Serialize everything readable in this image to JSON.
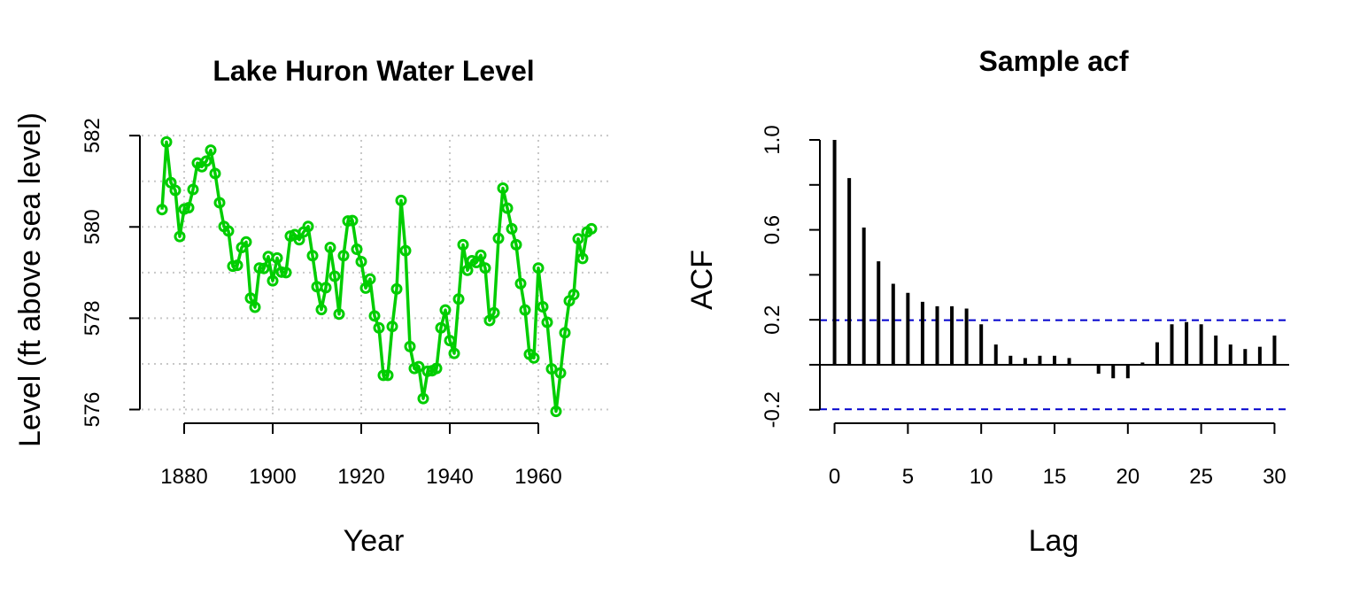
{
  "chart_data": [
    {
      "type": "line",
      "title": "Lake Huron Water Level",
      "xlabel": "Year",
      "ylabel": "Level (ft above sea level)",
      "xlim": [
        1870,
        1976
      ],
      "ylim": [
        575.7,
        582.1
      ],
      "x_ticks": [
        1880,
        1900,
        1920,
        1940,
        1960
      ],
      "y_ticks": [
        576,
        578,
        580,
        582
      ],
      "grid": true,
      "grid_style": "dotted",
      "line_color": "#00cd00",
      "markers": "open circles",
      "series": [
        {
          "x": [
            1875,
            1876,
            1877,
            1878,
            1879,
            1880,
            1881,
            1882,
            1883,
            1884,
            1885,
            1886,
            1887,
            1888,
            1889,
            1890,
            1891,
            1892,
            1893,
            1894,
            1895,
            1896,
            1897,
            1898,
            1899,
            1900,
            1901,
            1902,
            1903,
            1904,
            1905,
            1906,
            1907,
            1908,
            1909,
            1910,
            1911,
            1912,
            1913,
            1914,
            1915,
            1916,
            1917,
            1918,
            1919,
            1920,
            1921,
            1922,
            1923,
            1924,
            1925,
            1926,
            1927,
            1928,
            1929,
            1930,
            1931,
            1932,
            1933,
            1934,
            1935,
            1936,
            1937,
            1938,
            1939,
            1940,
            1941,
            1942,
            1943,
            1944,
            1945,
            1946,
            1947,
            1948,
            1949,
            1950,
            1951,
            1952,
            1953,
            1954,
            1955,
            1956,
            1957,
            1958,
            1959,
            1960,
            1961,
            1962,
            1963,
            1964,
            1965,
            1966,
            1967,
            1968,
            1969,
            1970,
            1971,
            1972
          ],
          "y": [
            580.38,
            581.86,
            580.97,
            580.8,
            579.79,
            580.39,
            580.42,
            580.82,
            581.4,
            581.32,
            581.44,
            581.68,
            581.17,
            580.53,
            580.01,
            579.91,
            579.14,
            579.16,
            579.55,
            579.67,
            578.44,
            578.24,
            579.1,
            579.09,
            579.35,
            578.82,
            579.32,
            579.01,
            579.0,
            579.8,
            579.83,
            579.72,
            579.89,
            580.01,
            579.37,
            578.69,
            578.19,
            578.67,
            579.55,
            578.92,
            578.09,
            579.37,
            580.13,
            580.14,
            579.51,
            579.24,
            578.66,
            578.86,
            578.05,
            577.79,
            576.75,
            576.75,
            577.82,
            578.64,
            580.58,
            579.48,
            577.38,
            576.9,
            576.94,
            576.24,
            576.84,
            576.85,
            576.9,
            577.79,
            578.18,
            577.51,
            577.23,
            578.42,
            579.61,
            579.05,
            579.26,
            579.22,
            579.38,
            579.1,
            577.95,
            578.12,
            579.75,
            580.85,
            580.41,
            579.96,
            579.61,
            578.76,
            578.18,
            577.21,
            577.13,
            579.1,
            578.25,
            577.91,
            576.89,
            575.96,
            576.8,
            577.68,
            578.38,
            578.52,
            579.74,
            579.31,
            579.89,
            579.96
          ]
        }
      ]
    },
    {
      "type": "bar",
      "title": "Sample acf",
      "xlabel": "Lag",
      "ylabel": "ACF",
      "xlim": [
        -1,
        31
      ],
      "ylim": [
        -0.26,
        1.0
      ],
      "x_ticks": [
        0,
        5,
        10,
        15,
        20,
        25,
        30
      ],
      "y_ticks": [
        -0.2,
        0.2,
        0.6,
        1.0
      ],
      "y_tick_labels": [
        "-0.2",
        "0.2",
        "0.6",
        "1.0"
      ],
      "confidence_bound": 0.198,
      "bound_color": "#0000cd",
      "categories": [
        0,
        1,
        2,
        3,
        4,
        5,
        6,
        7,
        8,
        9,
        10,
        11,
        12,
        13,
        14,
        15,
        16,
        17,
        18,
        19,
        20,
        21,
        22,
        23,
        24,
        25,
        26,
        27,
        28,
        29,
        30
      ],
      "values": [
        1.0,
        0.83,
        0.61,
        0.46,
        0.36,
        0.32,
        0.28,
        0.26,
        0.26,
        0.25,
        0.18,
        0.09,
        0.04,
        0.03,
        0.04,
        0.04,
        0.03,
        0.0,
        -0.04,
        -0.06,
        -0.06,
        0.01,
        0.1,
        0.18,
        0.19,
        0.18,
        0.13,
        0.09,
        0.07,
        0.08,
        0.13
      ]
    }
  ]
}
